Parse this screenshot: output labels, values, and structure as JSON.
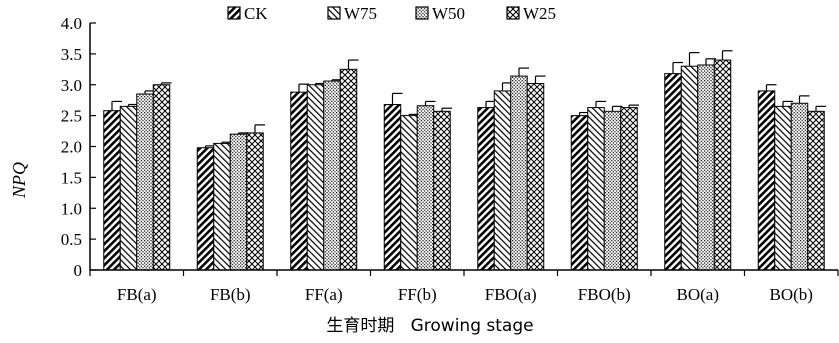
{
  "chart_data": {
    "type": "bar",
    "title": "",
    "xlabel": "生育时期   Growing stage",
    "ylabel": "NPQ",
    "ylim": [
      0,
      4.0
    ],
    "yticks": [
      "0",
      "0.5",
      "1.0",
      "1.5",
      "2.0",
      "2.5",
      "3.0",
      "3.5",
      "4.0"
    ],
    "grid": false,
    "legend_position": "top",
    "categories": [
      "FB(a)",
      "FB(b)",
      "FF(a)",
      "FF(b)",
      "FBO(a)",
      "FBO(b)",
      "BO(a)",
      "BO(b)"
    ],
    "series": [
      {
        "name": "CK",
        "pattern": "hatch-back",
        "values": [
          2.58,
          1.98,
          2.88,
          2.68,
          2.63,
          2.5,
          3.18,
          2.9
        ],
        "errors": [
          0.15,
          0.03,
          0.13,
          0.18,
          0.1,
          0.05,
          0.18,
          0.1
        ]
      },
      {
        "name": "W75",
        "pattern": "hatch-fwd",
        "values": [
          2.65,
          2.05,
          3.0,
          2.5,
          2.9,
          2.63,
          3.3,
          2.65
        ],
        "errors": [
          0.03,
          0.02,
          0.02,
          0.02,
          0.13,
          0.1,
          0.22,
          0.08
        ]
      },
      {
        "name": "W50",
        "pattern": "dots",
        "values": [
          2.85,
          2.2,
          3.06,
          2.66,
          3.14,
          2.57,
          3.32,
          2.7
        ],
        "errors": [
          0.05,
          0.02,
          0.02,
          0.07,
          0.13,
          0.08,
          0.1,
          0.12
        ]
      },
      {
        "name": "W25",
        "pattern": "cross",
        "values": [
          3.0,
          2.22,
          3.25,
          2.57,
          3.02,
          2.63,
          3.4,
          2.57
        ],
        "errors": [
          0.03,
          0.13,
          0.15,
          0.05,
          0.12,
          0.04,
          0.15,
          0.08
        ]
      }
    ]
  }
}
